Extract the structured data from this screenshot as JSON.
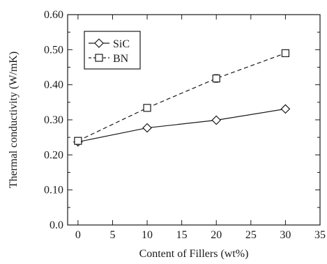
{
  "chart_data": {
    "type": "line",
    "title": "",
    "xlabel": "Content of  Fillers (wt%)",
    "ylabel": "Thermal conductivity (W/mK)",
    "xlim": [
      -1.5,
      35
    ],
    "ylim": [
      0.0,
      0.6
    ],
    "xticks": [
      0,
      5,
      10,
      15,
      20,
      25,
      30,
      35
    ],
    "xtick_labels": [
      "0",
      "5",
      "10",
      "15",
      "20",
      "25",
      "30",
      "35"
    ],
    "yticks": [
      0.0,
      0.1,
      0.2,
      0.3,
      0.4,
      0.5,
      0.6
    ],
    "ytick_labels": [
      "0.0",
      "0.10",
      "0.20",
      "0.30",
      "0.40",
      "0.50",
      "0.60"
    ],
    "grid": false,
    "legend_position": "top-left",
    "series": [
      {
        "name": "SiC",
        "marker": "diamond",
        "line_style": "solid",
        "x": [
          0,
          10,
          20,
          30
        ],
        "y": [
          0.237,
          0.277,
          0.299,
          0.331
        ],
        "error": [
          0.0,
          0.0,
          0.0,
          0.0
        ]
      },
      {
        "name": "BN",
        "marker": "square",
        "line_style": "dashed",
        "x": [
          0,
          10,
          20,
          30
        ],
        "y": [
          0.24,
          0.334,
          0.418,
          0.49
        ],
        "error": [
          0.0,
          0.0,
          0.011,
          0.007
        ]
      }
    ]
  }
}
